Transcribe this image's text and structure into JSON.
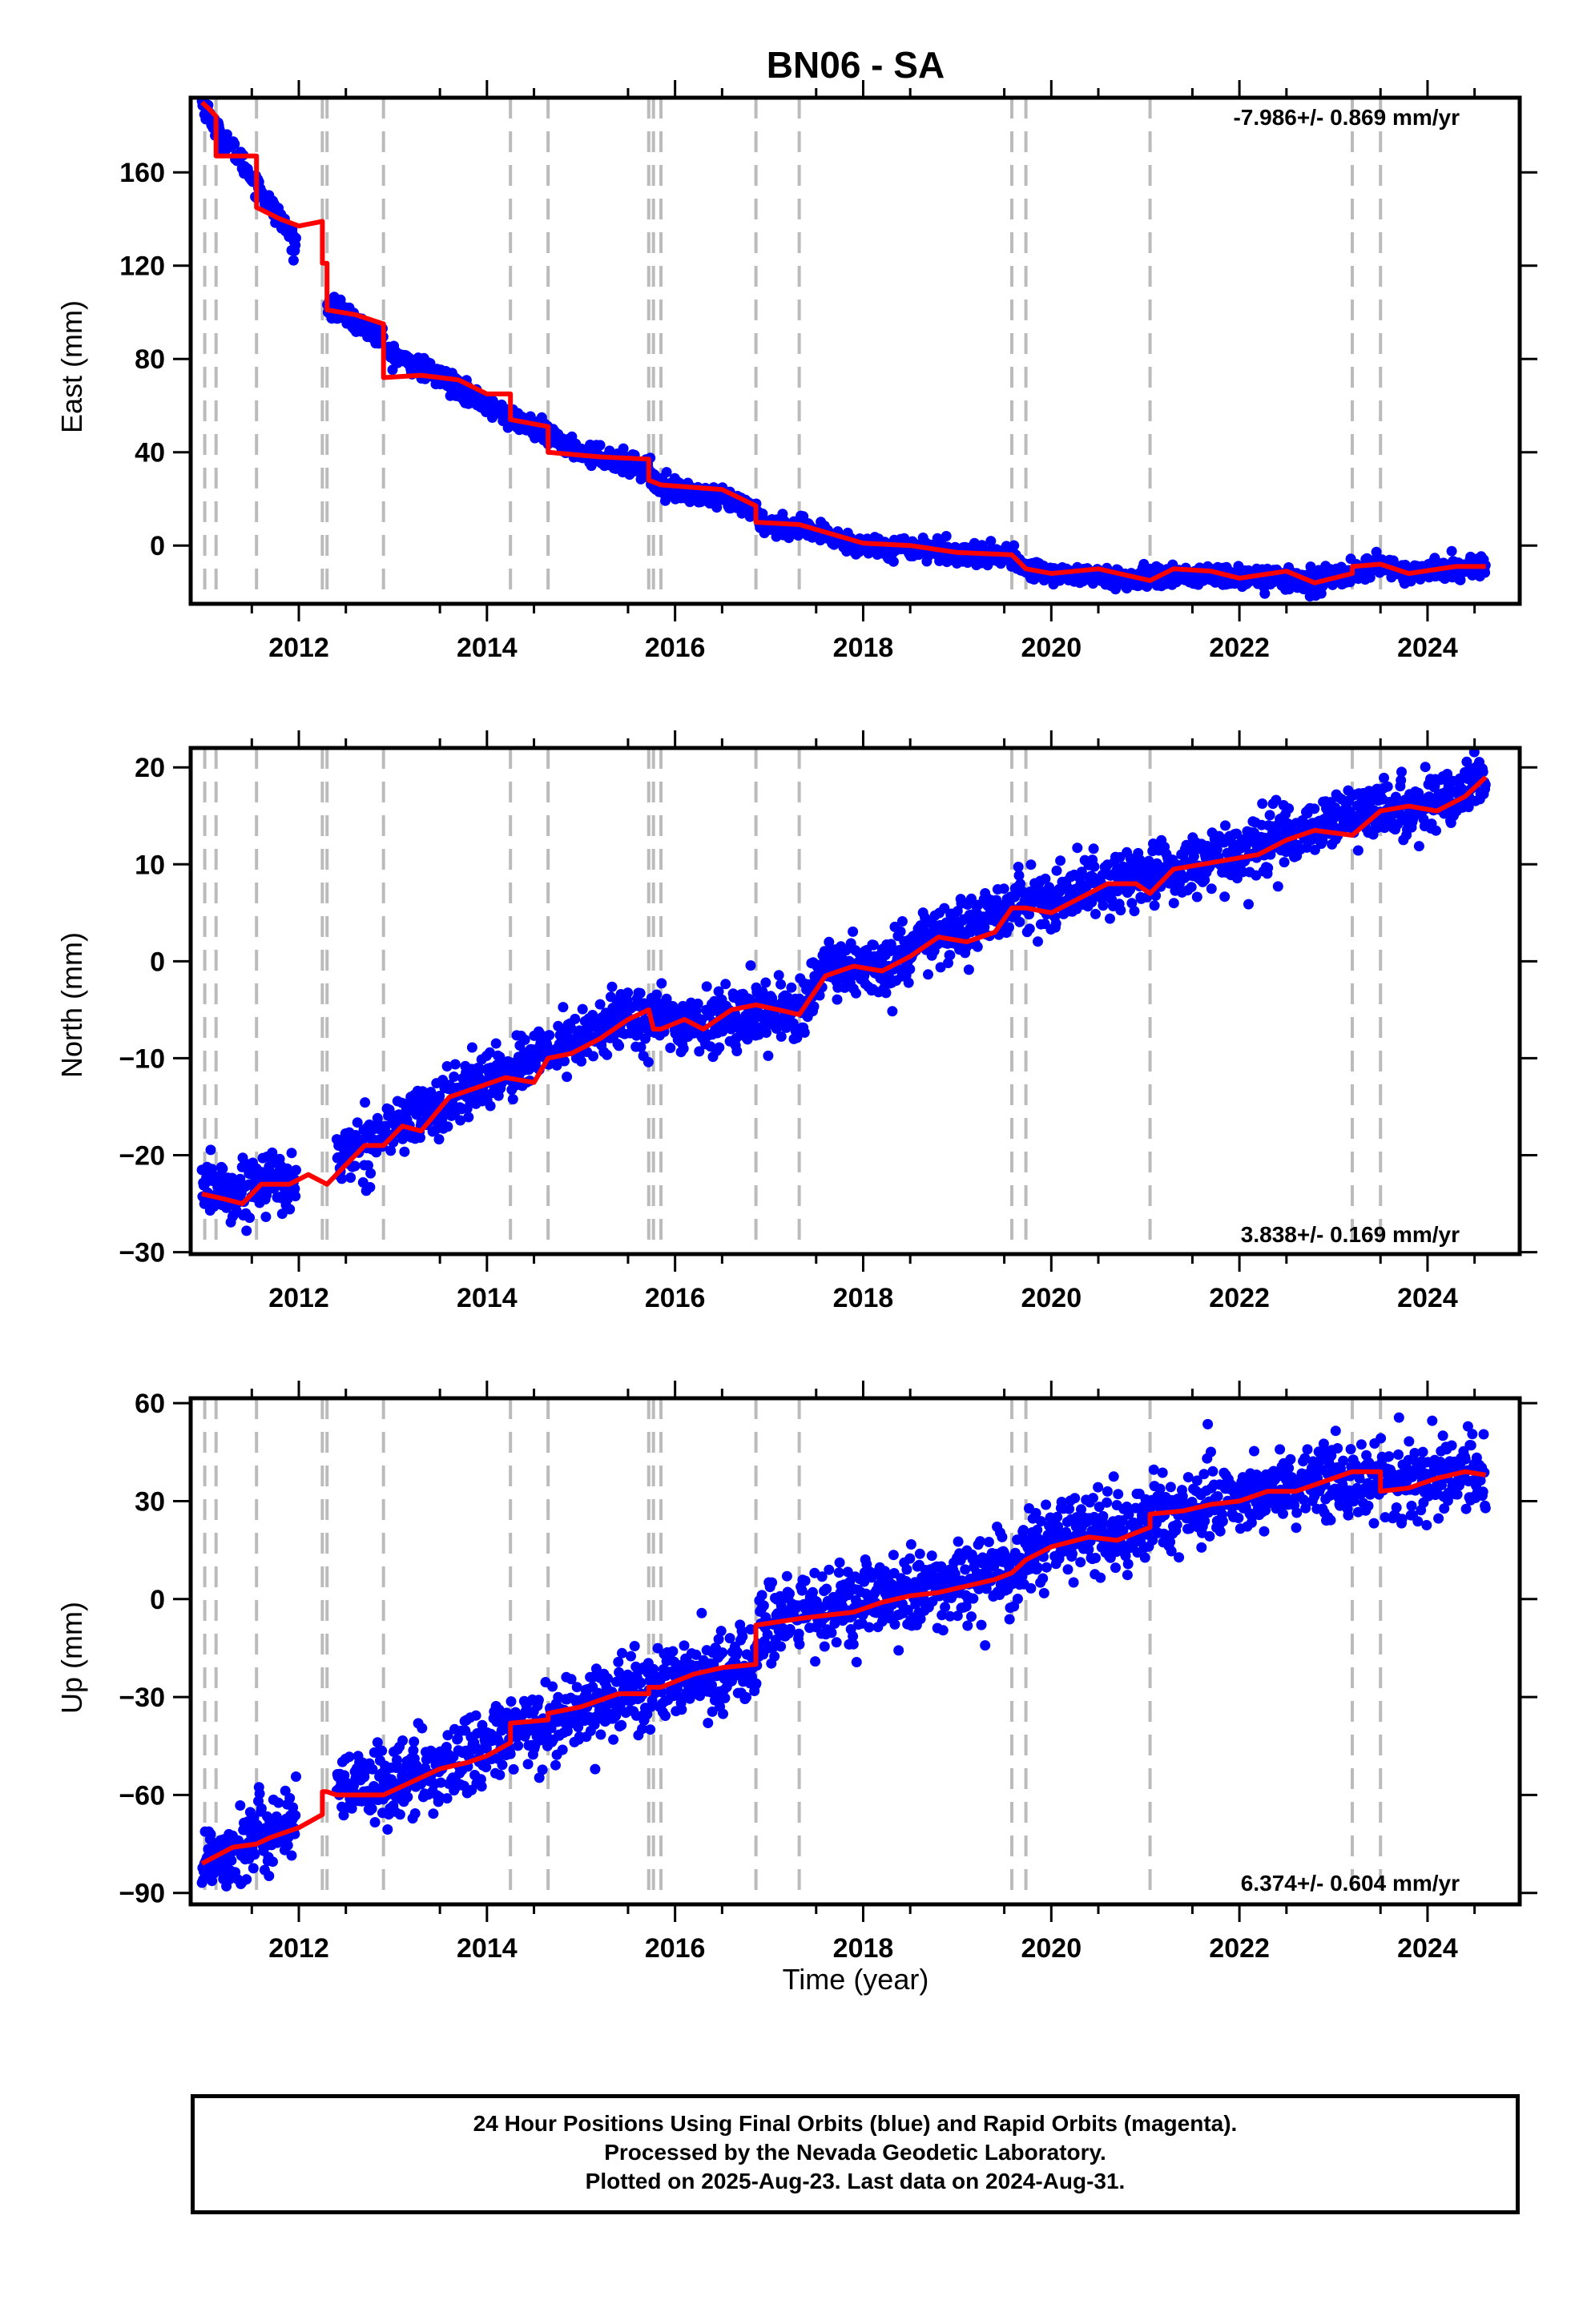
{
  "title": "BN06 - SA",
  "xlabel": "Time (year)",
  "footer": {
    "line1": "24 Hour Positions Using Final Orbits (blue) and Rapid Orbits (magenta).",
    "line2": "Processed by the Nevada Geodetic Laboratory.",
    "line3": "Plotted on 2025-Aug-23. Last data on 2024-Aug-31."
  },
  "colors": {
    "data": "#0000ff",
    "model": "#ff0000",
    "events": "#bbbbbb",
    "axis": "#000000"
  },
  "chart_data": [
    {
      "type": "scatter",
      "name": "East",
      "ylabel": "East (mm)",
      "rate": "-7.986+/- 0.869 mm/yr",
      "rate_position": "top-right",
      "xlim": [
        2010.85,
        2024.98
      ],
      "ylim": [
        -25,
        192
      ],
      "xticks": [
        2012,
        2014,
        2016,
        2018,
        2020,
        2022,
        2024
      ],
      "yticks": [
        0,
        40,
        80,
        120,
        160
      ],
      "event_lines": [
        2011.0,
        2011.12,
        2011.55,
        2012.25,
        2012.3,
        2012.9,
        2014.25,
        2014.65,
        2015.72,
        2015.77,
        2015.85,
        2016.86,
        2017.32,
        2019.58,
        2019.73,
        2021.05,
        2023.2,
        2023.5
      ],
      "gaps": [
        [
          2011.97,
          2012.3
        ],
        [
          2012.9,
          2012.95
        ]
      ],
      "noise": 2.2,
      "trend_points": [
        [
          2010.97,
          190
        ],
        [
          2011.05,
          185
        ],
        [
          2011.12,
          178
        ],
        [
          2011.3,
          170
        ],
        [
          2011.55,
          155
        ],
        [
          2011.8,
          140
        ],
        [
          2012.0,
          126
        ],
        [
          2012.3,
          103
        ],
        [
          2012.6,
          96
        ],
        [
          2012.9,
          88
        ],
        [
          2012.95,
          83
        ],
        [
          2013.3,
          76
        ],
        [
          2013.7,
          68
        ],
        [
          2014.0,
          60
        ],
        [
          2014.25,
          55
        ],
        [
          2014.65,
          47
        ],
        [
          2015.0,
          40
        ],
        [
          2015.3,
          37
        ],
        [
          2015.72,
          33
        ],
        [
          2015.77,
          27
        ],
        [
          2016.2,
          22
        ],
        [
          2016.86,
          16
        ],
        [
          2016.9,
          10
        ],
        [
          2017.32,
          7
        ],
        [
          2018.0,
          0
        ],
        [
          2018.6,
          -1
        ],
        [
          2019.0,
          -3
        ],
        [
          2019.58,
          -5
        ],
        [
          2019.73,
          -10
        ],
        [
          2020.0,
          -12
        ],
        [
          2021.0,
          -15
        ],
        [
          2021.05,
          -13
        ],
        [
          2022.0,
          -13
        ],
        [
          2022.8,
          -15
        ],
        [
          2023.2,
          -12
        ],
        [
          2023.5,
          -8
        ],
        [
          2023.8,
          -12
        ],
        [
          2024.2,
          -10
        ],
        [
          2024.62,
          -9
        ]
      ],
      "model_points": [
        [
          2010.97,
          190
        ],
        [
          2011.05,
          187
        ],
        [
          2011.12,
          184
        ],
        [
          2011.12,
          167
        ],
        [
          2011.55,
          167
        ],
        [
          2011.55,
          145
        ],
        [
          2011.8,
          140
        ],
        [
          2012.0,
          137
        ],
        [
          2012.25,
          139
        ],
        [
          2012.25,
          121
        ],
        [
          2012.3,
          121
        ],
        [
          2012.3,
          101
        ],
        [
          2012.6,
          99
        ],
        [
          2012.9,
          95
        ],
        [
          2012.9,
          72
        ],
        [
          2013.3,
          73
        ],
        [
          2013.7,
          71
        ],
        [
          2014.0,
          65
        ],
        [
          2014.25,
          65
        ],
        [
          2014.25,
          54
        ],
        [
          2014.65,
          51
        ],
        [
          2014.65,
          40
        ],
        [
          2015.2,
          38
        ],
        [
          2015.72,
          37
        ],
        [
          2015.72,
          28
        ],
        [
          2015.85,
          26
        ],
        [
          2016.5,
          24
        ],
        [
          2016.86,
          17
        ],
        [
          2016.86,
          10
        ],
        [
          2017.32,
          9
        ],
        [
          2018.0,
          1
        ],
        [
          2018.5,
          0
        ],
        [
          2019.0,
          -3
        ],
        [
          2019.58,
          -4
        ],
        [
          2019.73,
          -10
        ],
        [
          2020.0,
          -12
        ],
        [
          2020.5,
          -10
        ],
        [
          2021.05,
          -15
        ],
        [
          2021.3,
          -10
        ],
        [
          2021.7,
          -11
        ],
        [
          2022.0,
          -14
        ],
        [
          2022.5,
          -11
        ],
        [
          2022.8,
          -16
        ],
        [
          2023.2,
          -12
        ],
        [
          2023.2,
          -9
        ],
        [
          2023.5,
          -8
        ],
        [
          2023.8,
          -12
        ],
        [
          2024.3,
          -9
        ],
        [
          2024.62,
          -9
        ]
      ]
    },
    {
      "type": "scatter",
      "name": "North",
      "ylabel": "North (mm)",
      "rate": "3.838+/- 0.169 mm/yr",
      "rate_position": "bottom-right",
      "xlim": [
        2010.85,
        2024.98
      ],
      "ylim": [
        -30.2,
        22
      ],
      "xticks": [
        2012,
        2014,
        2016,
        2018,
        2020,
        2022,
        2024
      ],
      "yticks": [
        -30,
        -20,
        -10,
        0,
        10,
        20
      ],
      "event_lines": [
        2011.0,
        2011.12,
        2011.55,
        2012.25,
        2012.3,
        2012.9,
        2014.25,
        2014.65,
        2015.72,
        2015.77,
        2015.85,
        2016.86,
        2017.32,
        2019.58,
        2019.73,
        2021.05,
        2023.2,
        2023.5
      ],
      "gaps": [
        [
          2011.97,
          2012.4
        ]
      ],
      "noise": 1.5,
      "trend_points": [
        [
          2010.97,
          -23
        ],
        [
          2011.3,
          -24
        ],
        [
          2011.6,
          -22.5
        ],
        [
          2011.95,
          -23
        ],
        [
          2012.5,
          -20
        ],
        [
          2013.0,
          -17
        ],
        [
          2013.5,
          -15
        ],
        [
          2014.0,
          -12
        ],
        [
          2014.5,
          -10
        ],
        [
          2015.0,
          -8
        ],
        [
          2015.5,
          -5.5
        ],
        [
          2015.85,
          -6
        ],
        [
          2016.3,
          -6.5
        ],
        [
          2016.86,
          -5
        ],
        [
          2017.32,
          -5
        ],
        [
          2017.6,
          -1
        ],
        [
          2018.3,
          -0.5
        ],
        [
          2018.6,
          2
        ],
        [
          2019.0,
          3
        ],
        [
          2019.58,
          5.5
        ],
        [
          2020.0,
          6.5
        ],
        [
          2020.5,
          8
        ],
        [
          2021.0,
          8.5
        ],
        [
          2021.5,
          10
        ],
        [
          2022.0,
          11
        ],
        [
          2022.5,
          13
        ],
        [
          2023.0,
          14.5
        ],
        [
          2023.5,
          15.5
        ],
        [
          2024.0,
          16
        ],
        [
          2024.62,
          19
        ]
      ],
      "model_points": [
        [
          2010.97,
          -24
        ],
        [
          2011.2,
          -24.5
        ],
        [
          2011.4,
          -25
        ],
        [
          2011.6,
          -23
        ],
        [
          2011.9,
          -23
        ],
        [
          2012.1,
          -22
        ],
        [
          2012.3,
          -23
        ],
        [
          2012.5,
          -21
        ],
        [
          2012.7,
          -19
        ],
        [
          2012.9,
          -19
        ],
        [
          2013.1,
          -17
        ],
        [
          2013.3,
          -17.5
        ],
        [
          2013.6,
          -14
        ],
        [
          2013.9,
          -13
        ],
        [
          2014.2,
          -12
        ],
        [
          2014.5,
          -12.5
        ],
        [
          2014.65,
          -10
        ],
        [
          2014.9,
          -9.5
        ],
        [
          2015.2,
          -8
        ],
        [
          2015.5,
          -6
        ],
        [
          2015.72,
          -5
        ],
        [
          2015.77,
          -7
        ],
        [
          2015.85,
          -7
        ],
        [
          2016.1,
          -6
        ],
        [
          2016.3,
          -7
        ],
        [
          2016.6,
          -5
        ],
        [
          2016.86,
          -4.5
        ],
        [
          2017.1,
          -5
        ],
        [
          2017.32,
          -5.5
        ],
        [
          2017.6,
          -1.5
        ],
        [
          2017.9,
          -0.5
        ],
        [
          2018.2,
          -1
        ],
        [
          2018.5,
          0.5
        ],
        [
          2018.8,
          2.5
        ],
        [
          2019.1,
          2
        ],
        [
          2019.4,
          3
        ],
        [
          2019.58,
          5.5
        ],
        [
          2019.73,
          5.5
        ],
        [
          2020.0,
          5
        ],
        [
          2020.3,
          6.5
        ],
        [
          2020.6,
          8
        ],
        [
          2020.9,
          8
        ],
        [
          2021.05,
          7
        ],
        [
          2021.3,
          9.5
        ],
        [
          2021.6,
          10
        ],
        [
          2021.9,
          10.5
        ],
        [
          2022.2,
          11
        ],
        [
          2022.5,
          12.5
        ],
        [
          2022.8,
          13.5
        ],
        [
          2023.2,
          13
        ],
        [
          2023.5,
          15.5
        ],
        [
          2023.8,
          16
        ],
        [
          2024.1,
          15.5
        ],
        [
          2024.4,
          17
        ],
        [
          2024.62,
          19
        ]
      ]
    },
    {
      "type": "scatter",
      "name": "Up",
      "ylabel": "Up (mm)",
      "rate": "6.374+/- 0.604 mm/yr",
      "rate_position": "bottom-right",
      "xlim": [
        2010.85,
        2024.98
      ],
      "ylim": [
        -93.5,
        61.5
      ],
      "xticks": [
        2012,
        2014,
        2016,
        2018,
        2020,
        2022,
        2024
      ],
      "yticks": [
        -90,
        -60,
        -30,
        0,
        30,
        60
      ],
      "event_lines": [
        2011.0,
        2011.12,
        2011.55,
        2012.25,
        2012.3,
        2012.9,
        2014.25,
        2014.65,
        2015.72,
        2015.77,
        2015.85,
        2016.86,
        2017.32,
        2019.58,
        2019.73,
        2021.05,
        2023.2,
        2023.5
      ],
      "gaps": [
        [
          2011.97,
          2012.4
        ]
      ],
      "noise": 6.0,
      "trend_points": [
        [
          2010.97,
          -80
        ],
        [
          2011.5,
          -74
        ],
        [
          2011.95,
          -68
        ],
        [
          2012.4,
          -60
        ],
        [
          2013.0,
          -56
        ],
        [
          2013.5,
          -52
        ],
        [
          2014.0,
          -46
        ],
        [
          2014.25,
          -42
        ],
        [
          2014.65,
          -38
        ],
        [
          2015.0,
          -34
        ],
        [
          2015.5,
          -28
        ],
        [
          2015.85,
          -27
        ],
        [
          2016.5,
          -22
        ],
        [
          2016.86,
          -20
        ],
        [
          2016.9,
          -8
        ],
        [
          2017.32,
          -4
        ],
        [
          2018.0,
          -2
        ],
        [
          2018.6,
          2
        ],
        [
          2019.0,
          5
        ],
        [
          2019.58,
          8
        ],
        [
          2019.73,
          14
        ],
        [
          2020.0,
          17
        ],
        [
          2020.5,
          20
        ],
        [
          2021.0,
          22
        ],
        [
          2021.05,
          26
        ],
        [
          2021.5,
          28
        ],
        [
          2022.0,
          31
        ],
        [
          2022.5,
          34
        ],
        [
          2023.0,
          37
        ],
        [
          2023.5,
          38
        ],
        [
          2023.55,
          35
        ],
        [
          2024.0,
          38
        ],
        [
          2024.62,
          38
        ]
      ],
      "model_points": [
        [
          2010.97,
          -81
        ],
        [
          2011.3,
          -76
        ],
        [
          2011.55,
          -75
        ],
        [
          2011.7,
          -73
        ],
        [
          2012.0,
          -70
        ],
        [
          2012.25,
          -66
        ],
        [
          2012.25,
          -59
        ],
        [
          2012.3,
          -59
        ],
        [
          2012.4,
          -60
        ],
        [
          2012.9,
          -60
        ],
        [
          2013.2,
          -56
        ],
        [
          2013.5,
          -52
        ],
        [
          2013.8,
          -50
        ],
        [
          2014.0,
          -48
        ],
        [
          2014.25,
          -44
        ],
        [
          2014.25,
          -38
        ],
        [
          2014.65,
          -37
        ],
        [
          2014.65,
          -35
        ],
        [
          2015.0,
          -33
        ],
        [
          2015.4,
          -29
        ],
        [
          2015.72,
          -29
        ],
        [
          2015.72,
          -27
        ],
        [
          2015.85,
          -27
        ],
        [
          2016.2,
          -23
        ],
        [
          2016.5,
          -21
        ],
        [
          2016.86,
          -20
        ],
        [
          2016.86,
          -8
        ],
        [
          2017.32,
          -6
        ],
        [
          2017.6,
          -5
        ],
        [
          2017.9,
          -4
        ],
        [
          2018.2,
          -1
        ],
        [
          2018.5,
          1
        ],
        [
          2018.8,
          2
        ],
        [
          2019.1,
          4
        ],
        [
          2019.4,
          6
        ],
        [
          2019.58,
          8
        ],
        [
          2019.73,
          12
        ],
        [
          2020.0,
          16
        ],
        [
          2020.4,
          19
        ],
        [
          2020.7,
          18
        ],
        [
          2021.05,
          22
        ],
        [
          2021.05,
          26
        ],
        [
          2021.4,
          27
        ],
        [
          2021.7,
          29
        ],
        [
          2022.0,
          30
        ],
        [
          2022.3,
          33
        ],
        [
          2022.6,
          33
        ],
        [
          2022.9,
          36
        ],
        [
          2023.2,
          39
        ],
        [
          2023.5,
          39
        ],
        [
          2023.5,
          33
        ],
        [
          2023.8,
          34
        ],
        [
          2024.1,
          37
        ],
        [
          2024.4,
          39
        ],
        [
          2024.62,
          38
        ]
      ]
    }
  ]
}
